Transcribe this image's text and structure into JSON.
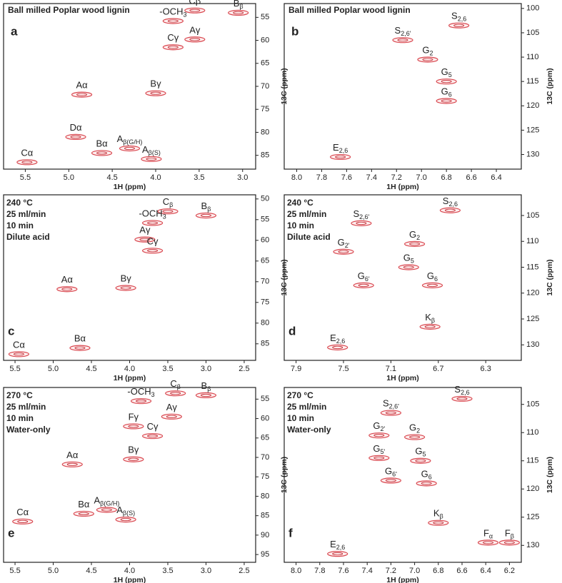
{
  "chart_data": [
    {
      "type": "contour",
      "panel_label": "a",
      "title": "Ball milled Poplar wood lignin",
      "conditions": [],
      "xlabel": "1H (ppm)",
      "ylabel": "13C (ppm)",
      "xlim": [
        5.75,
        2.85
      ],
      "ylim": [
        52,
        88
      ],
      "xticks": [
        {
          "value": 5.5,
          "label": "5.5"
        },
        {
          "value": 5.0,
          "label": "5.0"
        },
        {
          "value": 4.5,
          "label": "4.5"
        },
        {
          "value": 4.0,
          "label": "4.0"
        },
        {
          "value": 3.5,
          "label": "3.5"
        },
        {
          "value": 3.0,
          "label": "3.0"
        }
      ],
      "yticks": [
        55,
        60,
        65,
        70,
        75,
        80,
        85
      ],
      "peaks": [
        {
          "label": "Cβ",
          "x": 3.55,
          "y": 53.5
        },
        {
          "label": "B",
          "sub": "β",
          "x": 3.05,
          "y": 54
        },
        {
          "label": "-OCH",
          "sub": "3",
          "x": 3.8,
          "y": 55.8
        },
        {
          "label": "Cγ",
          "x": 3.8,
          "y": 61.5
        },
        {
          "label": "Aγ",
          "x": 3.55,
          "y": 59.8
        },
        {
          "label": "Aα",
          "x": 4.85,
          "y": 71.8
        },
        {
          "label": "Bγ",
          "x": 4.0,
          "y": 71.5
        },
        {
          "label": "Dα",
          "x": 4.92,
          "y": 81
        },
        {
          "label": "Bα",
          "x": 4.62,
          "y": 84.5
        },
        {
          "label": "A",
          "sub": "β(G/H)",
          "x": 4.3,
          "y": 83.5
        },
        {
          "label": "A",
          "sub": "β(S)",
          "x": 4.05,
          "y": 85.8
        },
        {
          "label": "Cα",
          "x": 5.48,
          "y": 86.5
        }
      ]
    },
    {
      "type": "contour",
      "panel_label": "b",
      "title": "Ball milled Poplar wood lignin",
      "conditions": [],
      "xlabel": "1H (ppm)",
      "ylabel": "13C (ppm)",
      "xlim": [
        8.1,
        6.2
      ],
      "ylim": [
        99,
        133
      ],
      "xticks": [
        {
          "value": 8.0,
          "label": "8.0"
        },
        7.8,
        7.6,
        7.4,
        7.2,
        {
          "value": 7.0,
          "label": "7.0"
        },
        6.8,
        6.6,
        6.4
      ],
      "yticks": [
        100,
        105,
        110,
        115,
        120,
        125,
        130
      ],
      "peaks": [
        {
          "label": "S",
          "sub": "2,6",
          "x": 6.7,
          "y": 103.5
        },
        {
          "label": "S",
          "sub": "2,6'",
          "x": 7.15,
          "y": 106.5
        },
        {
          "label": "G",
          "sub": "2",
          "x": 6.95,
          "y": 110.5
        },
        {
          "label": "G",
          "sub": "5",
          "x": 6.8,
          "y": 115
        },
        {
          "label": "G",
          "sub": "6",
          "x": 6.8,
          "y": 119
        },
        {
          "label": "E",
          "sub": "2,6",
          "x": 7.65,
          "y": 130.5
        }
      ]
    },
    {
      "type": "contour",
      "panel_label": "c",
      "title": "240 °C",
      "conditions": [
        "25 ml/min",
        "10 min",
        "Dilute acid"
      ],
      "xlabel": "1H (ppm)",
      "ylabel": "13C (ppm)",
      "xlim": [
        5.65,
        2.35
      ],
      "ylim": [
        49,
        89
      ],
      "xticks": [
        {
          "value": 5.5,
          "label": "5.5"
        },
        {
          "value": 5.0,
          "label": "5.0"
        },
        {
          "value": 4.5,
          "label": "4.5"
        },
        {
          "value": 4.0,
          "label": "4.0"
        },
        {
          "value": 3.5,
          "label": "3.5"
        },
        {
          "value": 3.0,
          "label": "3.0"
        },
        {
          "value": 2.5,
          "label": "2.5"
        }
      ],
      "yticks": [
        50,
        55,
        60,
        65,
        70,
        75,
        80,
        85
      ],
      "peaks": [
        {
          "label": "C",
          "sub": "β",
          "x": 3.5,
          "y": 53
        },
        {
          "label": "B",
          "sub": "β",
          "x": 3.0,
          "y": 54
        },
        {
          "label": "-OCH",
          "sub": "3",
          "x": 3.7,
          "y": 55.8
        },
        {
          "label": "Aγ",
          "x": 3.8,
          "y": 59.8
        },
        {
          "label": "Cγ",
          "x": 3.7,
          "y": 62.5
        },
        {
          "label": "Aα",
          "x": 4.82,
          "y": 71.8
        },
        {
          "label": "Bγ",
          "x": 4.05,
          "y": 71.5
        },
        {
          "label": "Bα",
          "x": 4.65,
          "y": 86
        },
        {
          "label": "Cα",
          "x": 5.45,
          "y": 87.5
        }
      ]
    },
    {
      "type": "contour",
      "panel_label": "d",
      "title": "240 °C",
      "conditions": [
        "25 ml/min",
        "10 min",
        "Dilute acid"
      ],
      "xlabel": "1H (ppm)",
      "ylabel": "13C (ppm)",
      "xlim": [
        8.0,
        6.0
      ],
      "ylim": [
        101,
        133
      ],
      "xticks": [
        7.9,
        7.5,
        7.1,
        6.7,
        6.3
      ],
      "yticks": [
        105,
        110,
        115,
        120,
        125,
        130
      ],
      "peaks": [
        {
          "label": "S",
          "sub": "2,6",
          "x": 6.6,
          "y": 104
        },
        {
          "label": "S",
          "sub": "2,6'",
          "x": 7.35,
          "y": 106.5
        },
        {
          "label": "G",
          "sub": "2'",
          "x": 7.5,
          "y": 112
        },
        {
          "label": "G",
          "sub": "2",
          "x": 6.9,
          "y": 110.5
        },
        {
          "label": "G",
          "sub": "5",
          "x": 6.95,
          "y": 115
        },
        {
          "label": "G",
          "sub": "6",
          "x": 6.75,
          "y": 118.5
        },
        {
          "label": "G",
          "sub": "6'",
          "x": 7.33,
          "y": 118.5
        },
        {
          "label": "K",
          "sub": "β",
          "x": 6.77,
          "y": 126.5
        },
        {
          "label": "E",
          "sub": "2,6",
          "x": 7.55,
          "y": 130.5
        }
      ]
    },
    {
      "type": "contour",
      "panel_label": "e",
      "title": "270 °C",
      "conditions": [
        "25 ml/min",
        "10 min",
        "Water-only"
      ],
      "xlabel": "1H (ppm)",
      "ylabel": "13C (ppm)",
      "xlim": [
        5.65,
        2.35
      ],
      "ylim": [
        52,
        97
      ],
      "xticks": [
        {
          "value": 5.5,
          "label": "5.5"
        },
        {
          "value": 5.0,
          "label": "5.0"
        },
        {
          "value": 4.5,
          "label": "4.5"
        },
        {
          "value": 4.0,
          "label": "4.0"
        },
        {
          "value": 3.5,
          "label": "3.5"
        },
        {
          "value": 3.0,
          "label": "3.0"
        },
        {
          "value": 2.5,
          "label": "2.5"
        }
      ],
      "yticks": [
        55,
        60,
        65,
        70,
        75,
        80,
        85,
        90,
        95
      ],
      "peaks": [
        {
          "label": "-OCH",
          "sub": "3",
          "x": 3.85,
          "y": 55.5
        },
        {
          "label": "C",
          "sub": "β",
          "x": 3.4,
          "y": 53.5
        },
        {
          "label": "B",
          "sub": "β",
          "x": 3.0,
          "y": 54
        },
        {
          "label": "Aγ",
          "x": 3.45,
          "y": 59.5
        },
        {
          "label": "Fγ",
          "x": 3.95,
          "y": 62
        },
        {
          "label": "Cγ",
          "x": 3.7,
          "y": 64.5
        },
        {
          "label": "Bγ",
          "x": 3.95,
          "y": 70.5
        },
        {
          "label": "Aα",
          "x": 4.75,
          "y": 71.8
        },
        {
          "label": "Bα",
          "x": 4.6,
          "y": 84.5
        },
        {
          "label": "A",
          "sub": "β(G/H)",
          "x": 4.3,
          "y": 83.5
        },
        {
          "label": "A",
          "sub": "β(S)",
          "x": 4.05,
          "y": 86
        },
        {
          "label": "Cα",
          "x": 5.4,
          "y": 86.5
        }
      ]
    },
    {
      "type": "contour",
      "panel_label": "f",
      "title": "270 °C",
      "conditions": [
        "25 ml/min",
        "10 min",
        "Water-only"
      ],
      "xlabel": "1H (ppm)",
      "ylabel": "13C (ppm)",
      "xlim": [
        8.1,
        6.1
      ],
      "ylim": [
        102,
        133
      ],
      "xticks": [
        {
          "value": 8.0,
          "label": "8.0"
        },
        7.8,
        7.6,
        7.4,
        7.2,
        {
          "value": 7.0,
          "label": "7.0"
        },
        6.8,
        6.6,
        6.4,
        6.2
      ],
      "yticks": [
        105,
        110,
        115,
        120,
        125,
        130
      ],
      "peaks": [
        {
          "label": "S",
          "sub": "2,6",
          "x": 6.6,
          "y": 104
        },
        {
          "label": "S",
          "sub": "2,6'",
          "x": 7.2,
          "y": 106.5
        },
        {
          "label": "G",
          "sub": "2'",
          "x": 7.3,
          "y": 110.5
        },
        {
          "label": "G",
          "sub": "2",
          "x": 7.0,
          "y": 110.8
        },
        {
          "label": "G",
          "sub": "5'",
          "x": 7.3,
          "y": 114.5
        },
        {
          "label": "G",
          "sub": "5",
          "x": 6.95,
          "y": 115
        },
        {
          "label": "G",
          "sub": "6",
          "x": 6.9,
          "y": 119
        },
        {
          "label": "G",
          "sub": "6'",
          "x": 7.2,
          "y": 118.5
        },
        {
          "label": "K",
          "sub": "β",
          "x": 6.8,
          "y": 126
        },
        {
          "label": "F",
          "sub": "α",
          "x": 6.38,
          "y": 129.5
        },
        {
          "label": "F",
          "sub": "β",
          "x": 6.2,
          "y": 129.5
        },
        {
          "label": "E",
          "sub": "2,6",
          "x": 7.65,
          "y": 131.5
        }
      ]
    }
  ]
}
